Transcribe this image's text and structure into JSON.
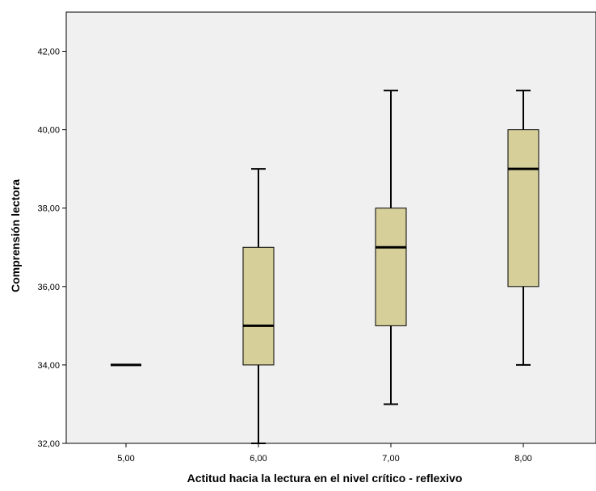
{
  "colors": {
    "plot_background": "#f0f0f0",
    "box_fill": "#d6cf9a",
    "stroke": "#000000",
    "page_background": "#ffffff"
  },
  "chart_data": {
    "type": "boxplot",
    "title": "",
    "xlabel": "Actitud hacia la lectura en el nivel crítico - reflexivo",
    "ylabel": "Comprensión lectora",
    "ylim": [
      32,
      43
    ],
    "yticks": [
      32,
      34,
      36,
      38,
      40,
      42
    ],
    "ytick_labels": [
      "32,00",
      "34,00",
      "36,00",
      "38,00",
      "40,00",
      "42,00"
    ],
    "categories": [
      "5,00",
      "6,00",
      "7,00",
      "8,00"
    ],
    "boxes": [
      {
        "category": "5,00",
        "min": 34,
        "q1": 34,
        "median": 34,
        "q3": 34,
        "max": 34
      },
      {
        "category": "6,00",
        "min": 32,
        "q1": 34,
        "median": 35,
        "q3": 37,
        "max": 39
      },
      {
        "category": "7,00",
        "min": 33,
        "q1": 35,
        "median": 37,
        "q3": 38,
        "max": 41
      },
      {
        "category": "8,00",
        "min": 34,
        "q1": 36,
        "median": 39,
        "q3": 40,
        "max": 41
      }
    ],
    "grid": false,
    "legend": "none"
  }
}
